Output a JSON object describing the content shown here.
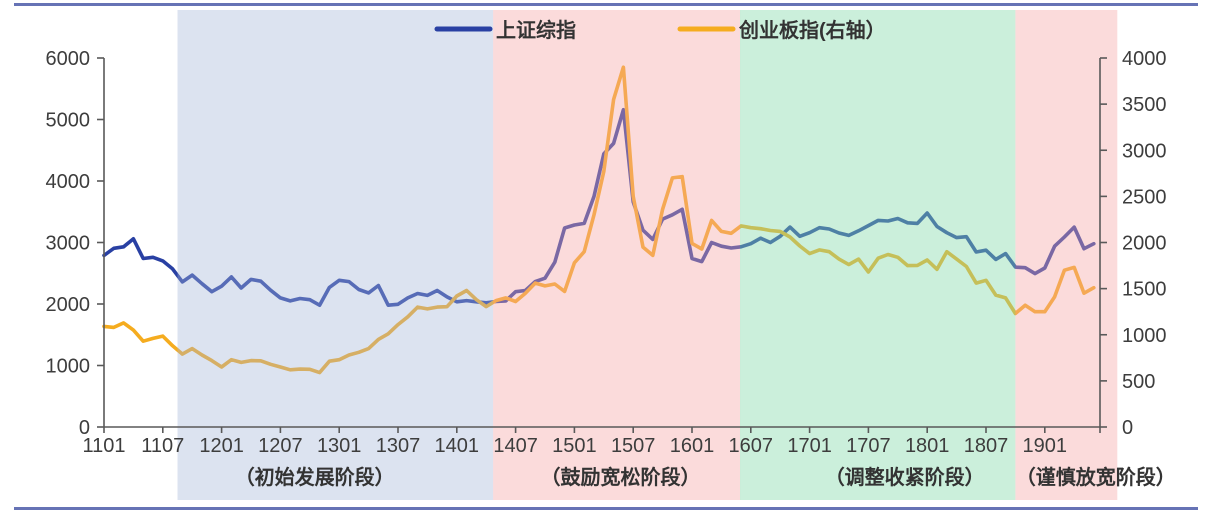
{
  "page": {
    "rule_color": "#6673B5"
  },
  "legend": [
    {
      "label": "上证综指",
      "color": "#2940A3"
    },
    {
      "label": "创业板指(右轴）",
      "color": "#F5AC1F"
    }
  ],
  "chart_data": {
    "type": "line",
    "title": "",
    "x_tick_labels": [
      "1101",
      "1107",
      "1201",
      "1207",
      "1301",
      "1307",
      "1401",
      "1407",
      "1501",
      "1507",
      "1601",
      "1607",
      "1701",
      "1707",
      "1801",
      "1807",
      "1901"
    ],
    "x_start": "2011-01",
    "x_interval": "monthly",
    "left_axis": {
      "ticks": [
        0,
        1000,
        2000,
        3000,
        4000,
        5000,
        6000
      ],
      "range": [
        0,
        6000
      ]
    },
    "right_axis": {
      "ticks": [
        0,
        500,
        1000,
        1500,
        2000,
        2500,
        3000,
        3500,
        4000
      ],
      "range": [
        0,
        4000
      ]
    },
    "grid": false,
    "legend_position": "top-center",
    "series": [
      {
        "name": "上证综指",
        "axis": "left",
        "color": "#2940A3",
        "values": [
          2790,
          2905,
          2930,
          3060,
          2740,
          2760,
          2700,
          2570,
          2360,
          2470,
          2330,
          2200,
          2290,
          2440,
          2260,
          2400,
          2370,
          2225,
          2100,
          2050,
          2090,
          2070,
          1980,
          2270,
          2385,
          2365,
          2235,
          2180,
          2300,
          1980,
          1995,
          2100,
          2170,
          2140,
          2220,
          2115,
          2035,
          2055,
          2035,
          2020,
          2040,
          2050,
          2200,
          2220,
          2365,
          2420,
          2680,
          3235,
          3285,
          3310,
          3750,
          4440,
          4612,
          5160,
          3660,
          3200,
          3050,
          3380,
          3450,
          3540,
          2740,
          2690,
          3000,
          2940,
          2910,
          2930,
          2980,
          3070,
          3000,
          3100,
          3250,
          3100,
          3160,
          3240,
          3220,
          3155,
          3115,
          3190,
          3275,
          3360,
          3350,
          3390,
          3320,
          3310,
          3480,
          3260,
          3160,
          3080,
          3095,
          2845,
          2875,
          2725,
          2820,
          2600,
          2590,
          2495,
          2585,
          2940,
          3090,
          3250,
          2900,
          2980
        ]
      },
      {
        "name": "创业板指(右轴）",
        "axis": "right",
        "color": "#F5AC1F",
        "values": [
          1090,
          1080,
          1128,
          1050,
          930,
          960,
          985,
          880,
          790,
          850,
          780,
          720,
          650,
          730,
          700,
          720,
          718,
          680,
          650,
          620,
          628,
          625,
          590,
          713,
          730,
          780,
          810,
          850,
          950,
          1010,
          1110,
          1195,
          1300,
          1280,
          1300,
          1304,
          1420,
          1480,
          1380,
          1305,
          1370,
          1400,
          1360,
          1450,
          1560,
          1530,
          1550,
          1470,
          1780,
          1900,
          2300,
          2770,
          3550,
          3900,
          2500,
          1950,
          1860,
          2360,
          2700,
          2714,
          1990,
          1930,
          2240,
          2120,
          2100,
          2180,
          2160,
          2150,
          2130,
          2120,
          2060,
          1962,
          1880,
          1920,
          1900,
          1820,
          1760,
          1820,
          1680,
          1830,
          1870,
          1840,
          1750,
          1752,
          1810,
          1710,
          1900,
          1820,
          1740,
          1560,
          1590,
          1430,
          1400,
          1230,
          1320,
          1250,
          1250,
          1410,
          1700,
          1730,
          1450,
          1510
        ]
      }
    ],
    "phases": [
      {
        "label": "（初始发展阶段）",
        "fill": "rgba(163,181,215,0.38)",
        "from_month": 7.5,
        "to_month": 39.7,
        "label_month": 21.5
      },
      {
        "label": "（鼓励宽松阶段）",
        "fill": "rgba(245,165,165,0.40)",
        "from_month": 39.7,
        "to_month": 64.9,
        "label_month": 52.7
      },
      {
        "label": "（调整收紧阶段）",
        "fill": "rgba(130,217,170,0.42)",
        "from_month": 64.9,
        "to_month": 93.0,
        "label_month": 81.7
      },
      {
        "label": "（谨慎放宽阶段）",
        "fill": "rgba(245,165,165,0.40)",
        "from_month": 93.0,
        "to_month": 103.4,
        "label_month": 101.2
      }
    ]
  }
}
